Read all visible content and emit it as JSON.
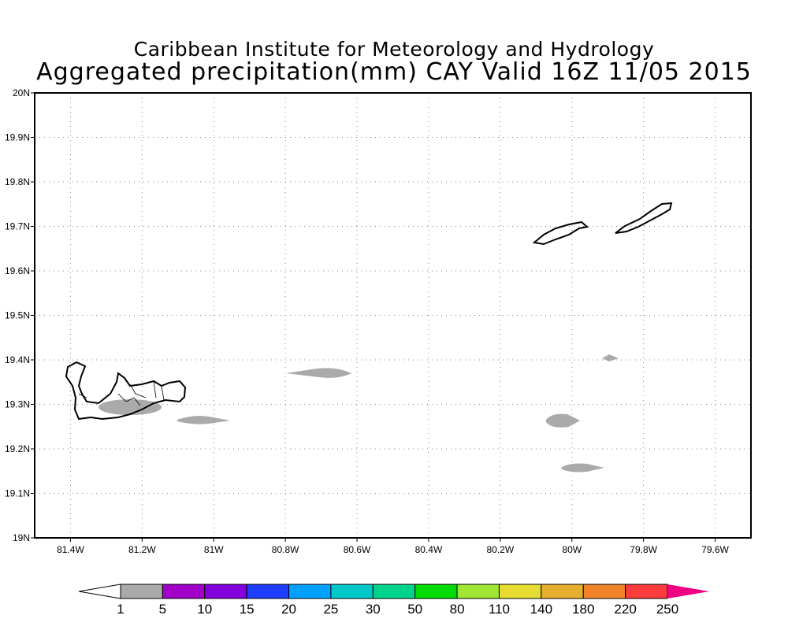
{
  "title": {
    "line1": "Caribbean Institute for Meteorology and Hydrology",
    "line2": "Aggregated precipitation(mm) CAY Valid 16Z 11/05 2015"
  },
  "map": {
    "lon_range": [
      -81.5,
      -79.5
    ],
    "lat_range": [
      19.0,
      20.0
    ],
    "lon_ticks": [
      "81.4W",
      "81.2W",
      "81W",
      "80.8W",
      "80.6W",
      "80.4W",
      "80.2W",
      "80W",
      "79.8W",
      "79.6W"
    ],
    "lat_ticks": [
      "19N",
      "19.1N",
      "19.2N",
      "19.3N",
      "19.4N",
      "19.5N",
      "19.6N",
      "19.7N",
      "19.8N",
      "19.9N",
      "20N"
    ],
    "grid": "dotted"
  },
  "colorbar": {
    "labels": [
      "1",
      "5",
      "10",
      "15",
      "20",
      "25",
      "30",
      "50",
      "80",
      "110",
      "140",
      "180",
      "220",
      "250"
    ],
    "colors": [
      "#aaaaaa",
      "#a000c8",
      "#8200dc",
      "#1e3cff",
      "#00a0ff",
      "#00c8c8",
      "#00d28c",
      "#00dc00",
      "#a0e632",
      "#e6dc32",
      "#e6af2d",
      "#f08228",
      "#fa3c3c",
      "#f00082"
    ]
  }
}
